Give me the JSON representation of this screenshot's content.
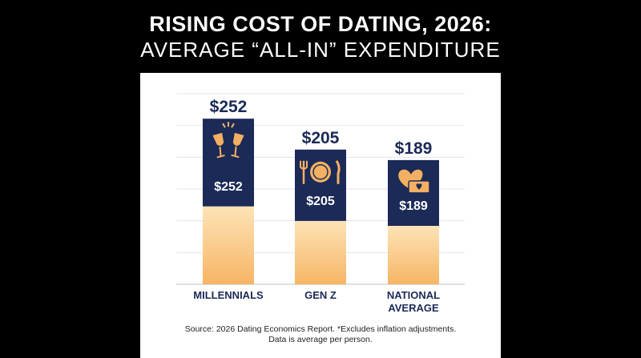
{
  "title_line1": "RISING COST OF DATING, 2026:",
  "title_line2": "AVERAGE “ALL-IN” EXPENDITURE",
  "source_line1": "Source: 2026 Dating Economics Report. *Excludes inflation adjustments.",
  "source_line2": "Data is average per person.",
  "colors": {
    "background": "#000000",
    "panel": "#ffffff",
    "bar_top": "#1b2a57",
    "bar_bottom_light": "#fde3b6",
    "bar_bottom_dark": "#f7b565",
    "icon": "#f4b062",
    "label": "#1b2a57"
  },
  "chart_data": {
    "type": "bar",
    "categories": [
      "MILLENNIALS",
      "GEN Z",
      "NATIONAL AVERAGE"
    ],
    "category_lines": [
      [
        "MILLENNIALS"
      ],
      [
        "GEN Z"
      ],
      [
        "NATIONAL",
        "AVERAGE"
      ]
    ],
    "values": [
      252,
      205,
      189
    ],
    "value_labels": [
      "$252",
      "$205",
      "$189"
    ],
    "icons": [
      "champagne-glasses-icon",
      "plate-fork-knife-icon",
      "heart-ticket-icon"
    ],
    "title": "",
    "xlabel": "",
    "ylabel": "",
    "ylim": [
      0,
      290
    ],
    "grid": true,
    "legend": "none"
  }
}
